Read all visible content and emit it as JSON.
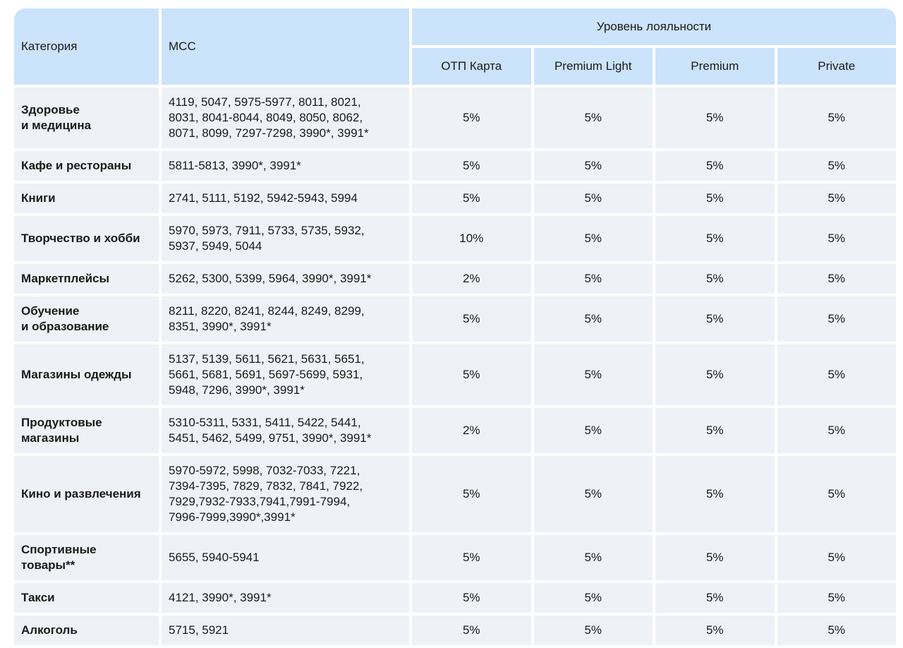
{
  "table": {
    "header": {
      "category": "Категория",
      "mcc": "МСС",
      "loyalty": "Уровень лояльности",
      "levels": [
        "ОТП Карта",
        "Premium Light",
        "Premium",
        "Private"
      ]
    },
    "rows": [
      {
        "category": "Здоровье\nи медицина",
        "mcc": "4119, 5047, 5975-5977, 8011, 8021,\n8031, 8041-8044, 8049, 8050, 8062,\n8071, 8099, 7297-7298, 3990*, 3991*",
        "values": [
          "5%",
          "5%",
          "5%",
          "5%"
        ]
      },
      {
        "category": "Кафе и рестораны",
        "mcc": "5811-5813, 3990*, 3991*",
        "values": [
          "5%",
          "5%",
          "5%",
          "5%"
        ]
      },
      {
        "category": "Книги",
        "mcc": "2741, 5111, 5192, 5942-5943, 5994",
        "values": [
          "5%",
          "5%",
          "5%",
          "5%"
        ]
      },
      {
        "category": "Творчество и хобби",
        "mcc": "5970, 5973, 7911, 5733, 5735, 5932,\n5937, 5949, 5044",
        "values": [
          "10%",
          "5%",
          "5%",
          "5%"
        ]
      },
      {
        "category": "Маркетплейсы",
        "mcc": "5262, 5300, 5399, 5964, 3990*, 3991*",
        "values": [
          "2%",
          "5%",
          "5%",
          "5%"
        ]
      },
      {
        "category": "Обучение\nи образование",
        "mcc": "8211, 8220, 8241, 8244, 8249, 8299,\n8351, 3990*, 3991*",
        "values": [
          "5%",
          "5%",
          "5%",
          "5%"
        ]
      },
      {
        "category": "Магазины одежды",
        "mcc": "5137, 5139, 5611, 5621, 5631, 5651,\n5661, 5681, 5691, 5697-5699, 5931,\n5948, 7296, 3990*, 3991*",
        "values": [
          "5%",
          "5%",
          "5%",
          "5%"
        ]
      },
      {
        "category": "Продуктовые\nмагазины",
        "mcc": "5310-5311, 5331, 5411, 5422, 5441,\n5451, 5462, 5499, 9751, 3990*, 3991*",
        "values": [
          "2%",
          "5%",
          "5%",
          "5%"
        ]
      },
      {
        "category": "Кино и развлечения",
        "mcc": "5970-5972, 5998, 7032-7033, 7221,\n7394-7395, 7829, 7832, 7841, 7922,\n7929,7932-7933,7941,7991-7994,\n7996-7999,3990*,3991*",
        "values": [
          "5%",
          "5%",
          "5%",
          "5%"
        ]
      },
      {
        "category": "Спортивные\nтовары**",
        "mcc": "5655, 5940-5941",
        "values": [
          "5%",
          "5%",
          "5%",
          "5%"
        ]
      },
      {
        "category": "Такси",
        "mcc": "4121, 3990*, 3991*",
        "values": [
          "5%",
          "5%",
          "5%",
          "5%"
        ]
      },
      {
        "category": "Алкоголь",
        "mcc": "5715, 5921",
        "values": [
          "5%",
          "5%",
          "5%",
          "5%"
        ]
      }
    ]
  }
}
